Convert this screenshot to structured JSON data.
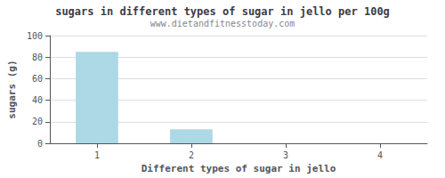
{
  "chart_data": {
    "type": "bar",
    "title": "sugars in different types of sugar in jello per 100g",
    "subtitle": "www.dietandfitnesstoday.com",
    "xlabel": "Different types of sugar in jello",
    "ylabel": "sugars (g)",
    "x": [
      1,
      2,
      3,
      4
    ],
    "values": [
      85,
      13,
      0,
      0
    ],
    "color": "#add8e6",
    "xlim": [
      0.5,
      4.5
    ],
    "xticks": [
      1,
      2,
      3,
      4
    ],
    "ylim": [
      0,
      100
    ],
    "yticks": [
      0,
      20,
      40,
      60,
      80,
      100
    ],
    "grid": true
  }
}
